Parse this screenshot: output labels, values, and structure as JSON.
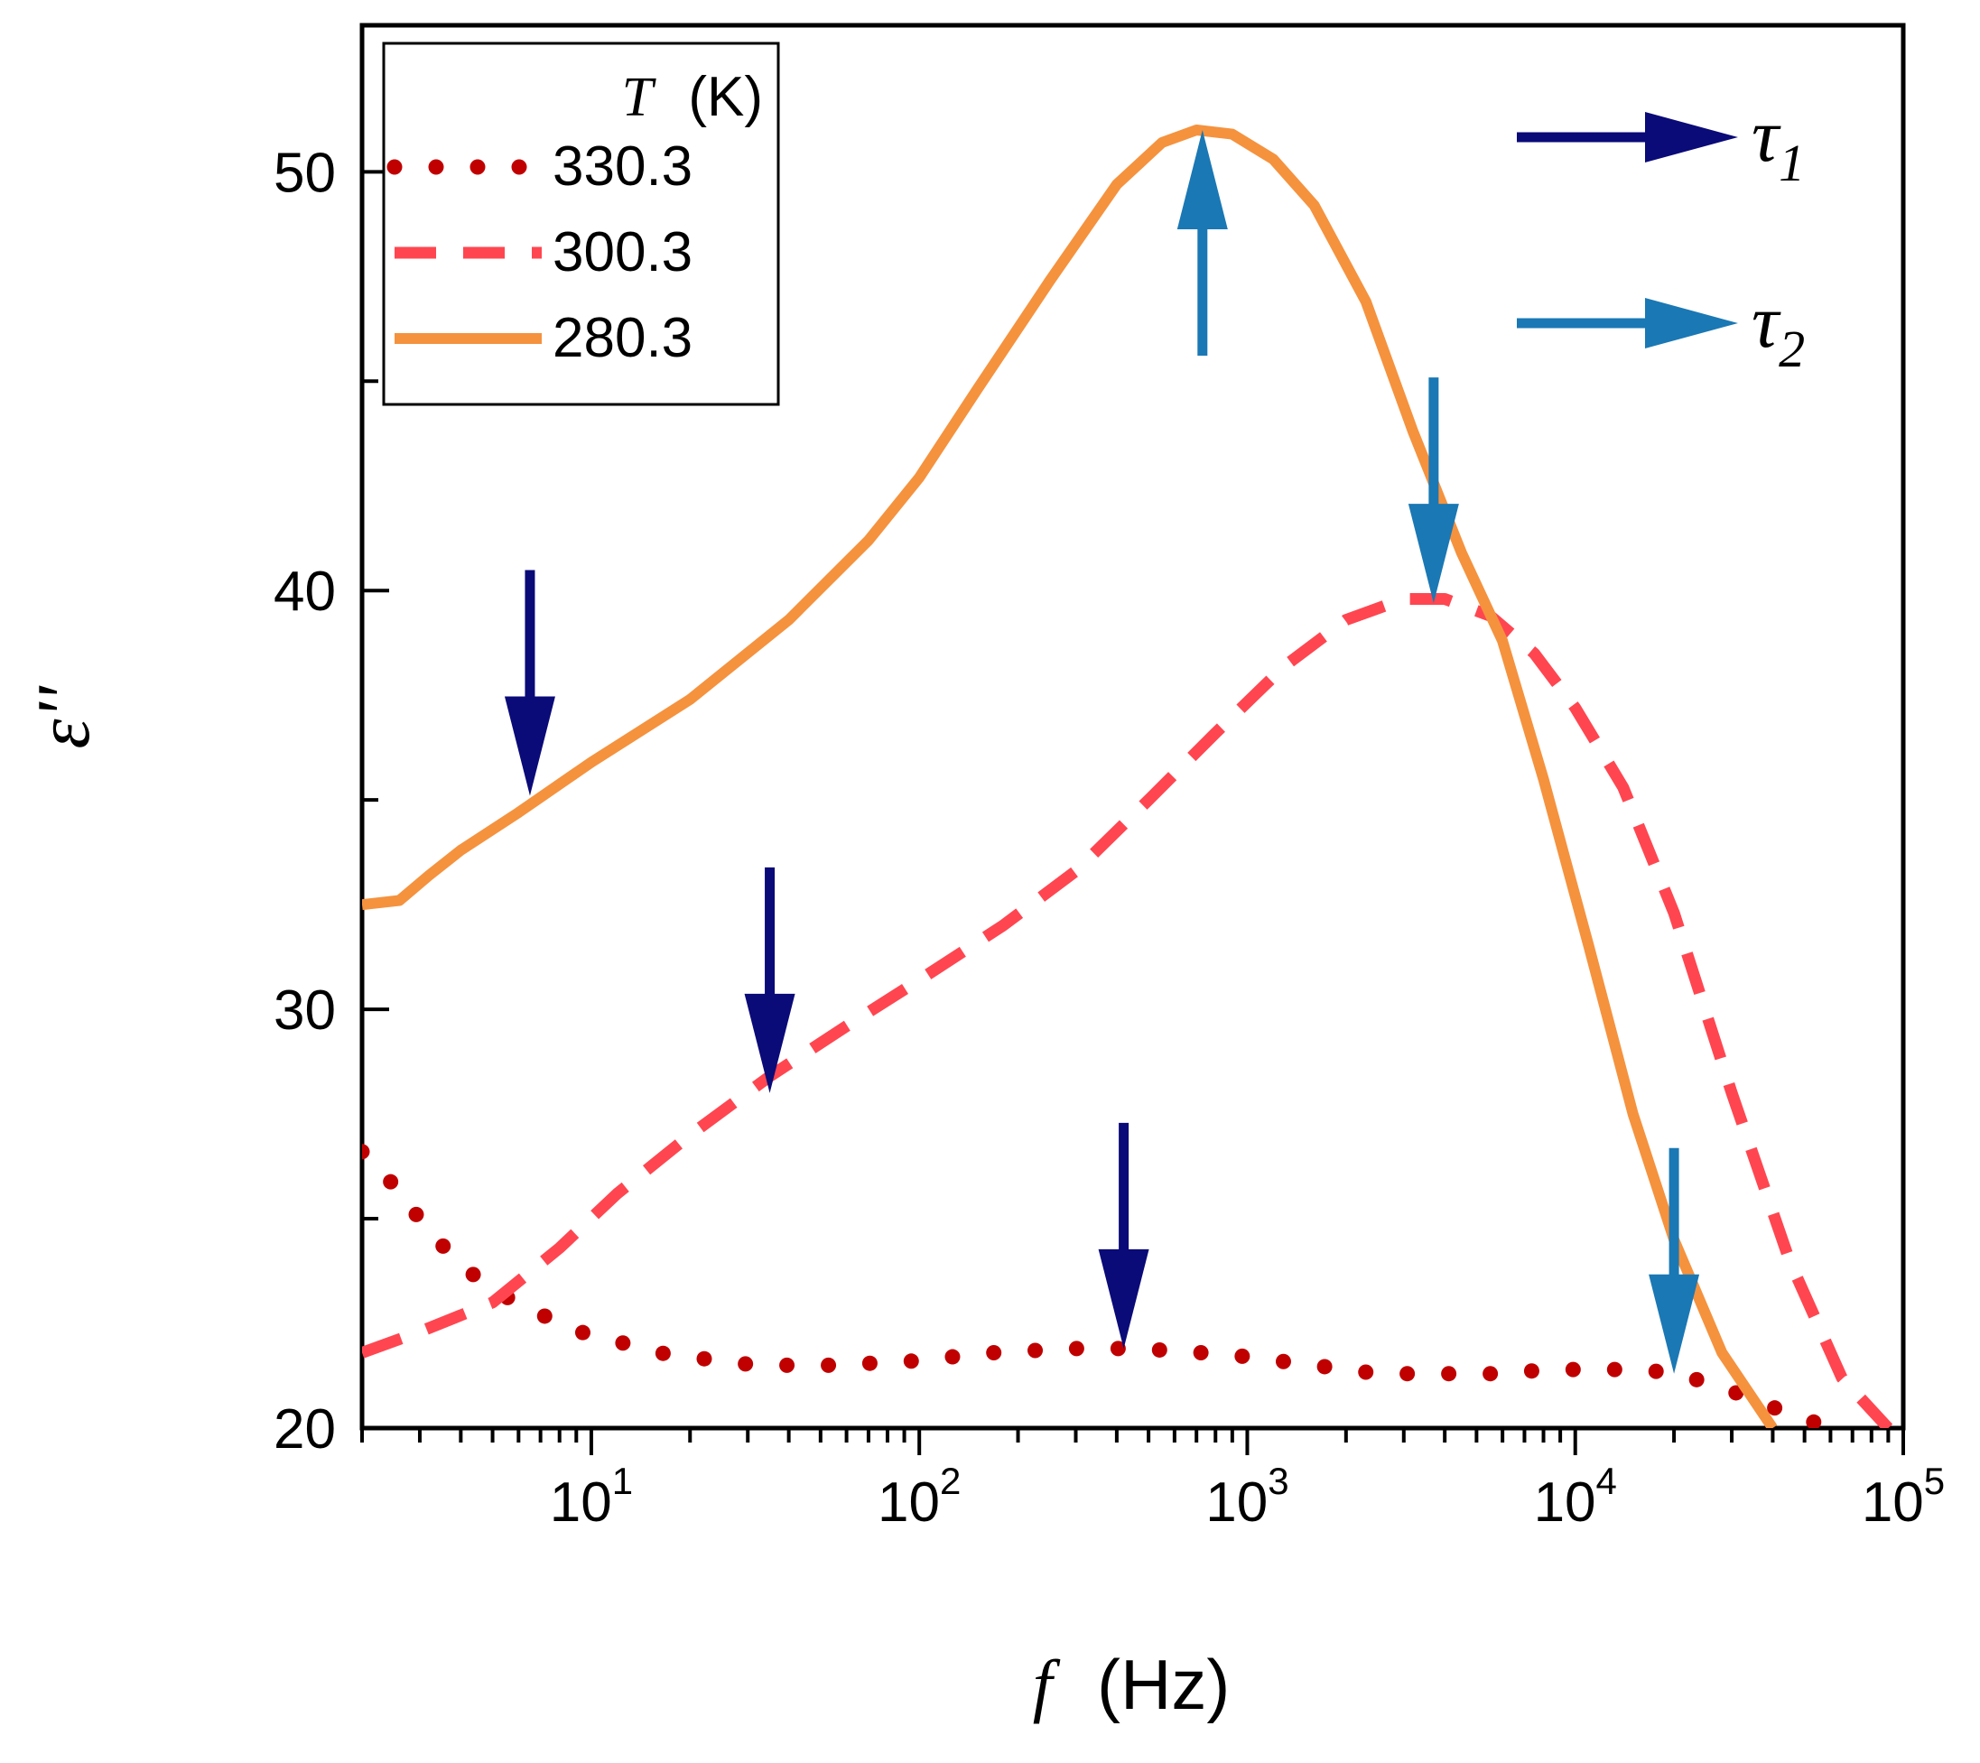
{
  "chart_data": {
    "type": "line",
    "title": "",
    "xlabel_symbol": "f",
    "xlabel_unit": "(Hz)",
    "ylabel": "ε''",
    "x_scale": "log",
    "xlim": [
      2,
      100000
    ],
    "ylim": [
      20,
      53.5
    ],
    "x_ticks": [
      {
        "value": 10,
        "base": "10",
        "exp": "1"
      },
      {
        "value": 100,
        "base": "10",
        "exp": "2"
      },
      {
        "value": 1000,
        "base": "10",
        "exp": "3"
      },
      {
        "value": 10000,
        "base": "10",
        "exp": "4"
      },
      {
        "value": 100000,
        "base": "10",
        "exp": "5"
      }
    ],
    "y_ticks": [
      {
        "value": 20,
        "label": "20"
      },
      {
        "value": 30,
        "label": "30"
      },
      {
        "value": 40,
        "label": "40"
      },
      {
        "value": 50,
        "label": "50"
      }
    ],
    "legend": {
      "position": "top-left",
      "title_symbol": "T",
      "title_unit": "(K)"
    },
    "series": [
      {
        "name": "330.3",
        "style": "dotted",
        "color": "#c00000",
        "points": [
          [
            2,
            26.6
          ],
          [
            2.5,
            25.8
          ],
          [
            3.2,
            24.7
          ],
          [
            4,
            23.9
          ],
          [
            5,
            23.3
          ],
          [
            6.3,
            22.9
          ],
          [
            8,
            22.5
          ],
          [
            10,
            22.2
          ],
          [
            13,
            22.0
          ],
          [
            16,
            21.8
          ],
          [
            20,
            21.7
          ],
          [
            25,
            21.6
          ],
          [
            32,
            21.5
          ],
          [
            40,
            21.5
          ],
          [
            50,
            21.5
          ],
          [
            63,
            21.5
          ],
          [
            80,
            21.6
          ],
          [
            100,
            21.6
          ],
          [
            126,
            21.7
          ],
          [
            160,
            21.8
          ],
          [
            200,
            21.8
          ],
          [
            250,
            21.9
          ],
          [
            320,
            21.9
          ],
          [
            400,
            21.9
          ],
          [
            500,
            21.9
          ],
          [
            630,
            21.8
          ],
          [
            800,
            21.8
          ],
          [
            1000,
            21.7
          ],
          [
            1260,
            21.6
          ],
          [
            1600,
            21.5
          ],
          [
            2000,
            21.4
          ],
          [
            2500,
            21.3
          ],
          [
            3200,
            21.3
          ],
          [
            4000,
            21.3
          ],
          [
            5000,
            21.3
          ],
          [
            6300,
            21.3
          ],
          [
            8000,
            21.4
          ],
          [
            10000,
            21.4
          ],
          [
            12600,
            21.4
          ],
          [
            16000,
            21.4
          ],
          [
            20000,
            21.3
          ],
          [
            25000,
            21.1
          ],
          [
            32000,
            20.8
          ],
          [
            40000,
            20.5
          ],
          [
            50000,
            20.2
          ],
          [
            63000,
            20.0
          ]
        ]
      },
      {
        "name": "300.3",
        "style": "dashed",
        "color": "#ff4650",
        "points": [
          [
            2,
            21.8
          ],
          [
            3,
            22.3
          ],
          [
            5,
            23.0
          ],
          [
            8,
            24.3
          ],
          [
            12,
            25.6
          ],
          [
            20,
            27.0
          ],
          [
            35,
            28.4
          ],
          [
            60,
            29.6
          ],
          [
            100,
            30.7
          ],
          [
            180,
            32.0
          ],
          [
            300,
            33.3
          ],
          [
            500,
            35.0
          ],
          [
            800,
            36.6
          ],
          [
            1300,
            38.2
          ],
          [
            2000,
            39.3
          ],
          [
            3000,
            39.8
          ],
          [
            4000,
            39.8
          ],
          [
            5500,
            39.4
          ],
          [
            7500,
            38.5
          ],
          [
            10000,
            37.2
          ],
          [
            14000,
            35.3
          ],
          [
            20000,
            32.3
          ],
          [
            30000,
            28.0
          ],
          [
            45000,
            24.0
          ],
          [
            65000,
            21.2
          ],
          [
            90000,
            20.0
          ]
        ]
      },
      {
        "name": "280.3",
        "style": "solid",
        "color": "#f5923e",
        "points": [
          [
            2,
            32.5
          ],
          [
            2.6,
            32.6
          ],
          [
            3.2,
            33.2
          ],
          [
            4,
            33.8
          ],
          [
            6,
            34.7
          ],
          [
            10,
            35.9
          ],
          [
            20,
            37.4
          ],
          [
            40,
            39.3
          ],
          [
            70,
            41.2
          ],
          [
            100,
            42.7
          ],
          [
            150,
            44.8
          ],
          [
            250,
            47.4
          ],
          [
            400,
            49.7
          ],
          [
            550,
            50.7
          ],
          [
            700,
            51.0
          ],
          [
            900,
            50.9
          ],
          [
            1200,
            50.3
          ],
          [
            1600,
            49.2
          ],
          [
            2300,
            46.9
          ],
          [
            3200,
            43.8
          ],
          [
            4500,
            40.9
          ],
          [
            6000,
            38.8
          ],
          [
            8000,
            35.5
          ],
          [
            11000,
            31.5
          ],
          [
            15000,
            27.5
          ],
          [
            20000,
            24.5
          ],
          [
            28000,
            21.8
          ],
          [
            40000,
            20.0
          ]
        ]
      }
    ],
    "markers": [
      {
        "kind": "tau1",
        "direction": "down",
        "x": 6.5,
        "y": 35.1,
        "color": "#0a0a78"
      },
      {
        "kind": "tau1",
        "direction": "down",
        "x": 35,
        "y": 28.0,
        "color": "#0a0a78"
      },
      {
        "kind": "tau1",
        "direction": "down",
        "x": 420,
        "y": 21.9,
        "color": "#0a0a78"
      },
      {
        "kind": "tau2",
        "direction": "up",
        "x": 730,
        "y": 51.0,
        "color": "#1a78b4"
      },
      {
        "kind": "tau2",
        "direction": "down",
        "x": 3700,
        "y": 39.7,
        "color": "#1a78b4"
      },
      {
        "kind": "tau2",
        "direction": "down",
        "x": 20000,
        "y": 21.3,
        "color": "#1a78b4"
      }
    ],
    "key": [
      {
        "symbol": "τ",
        "sub": "1",
        "color": "#0a0a78"
      },
      {
        "symbol": "τ",
        "sub": "2",
        "color": "#1a78b4"
      }
    ]
  }
}
